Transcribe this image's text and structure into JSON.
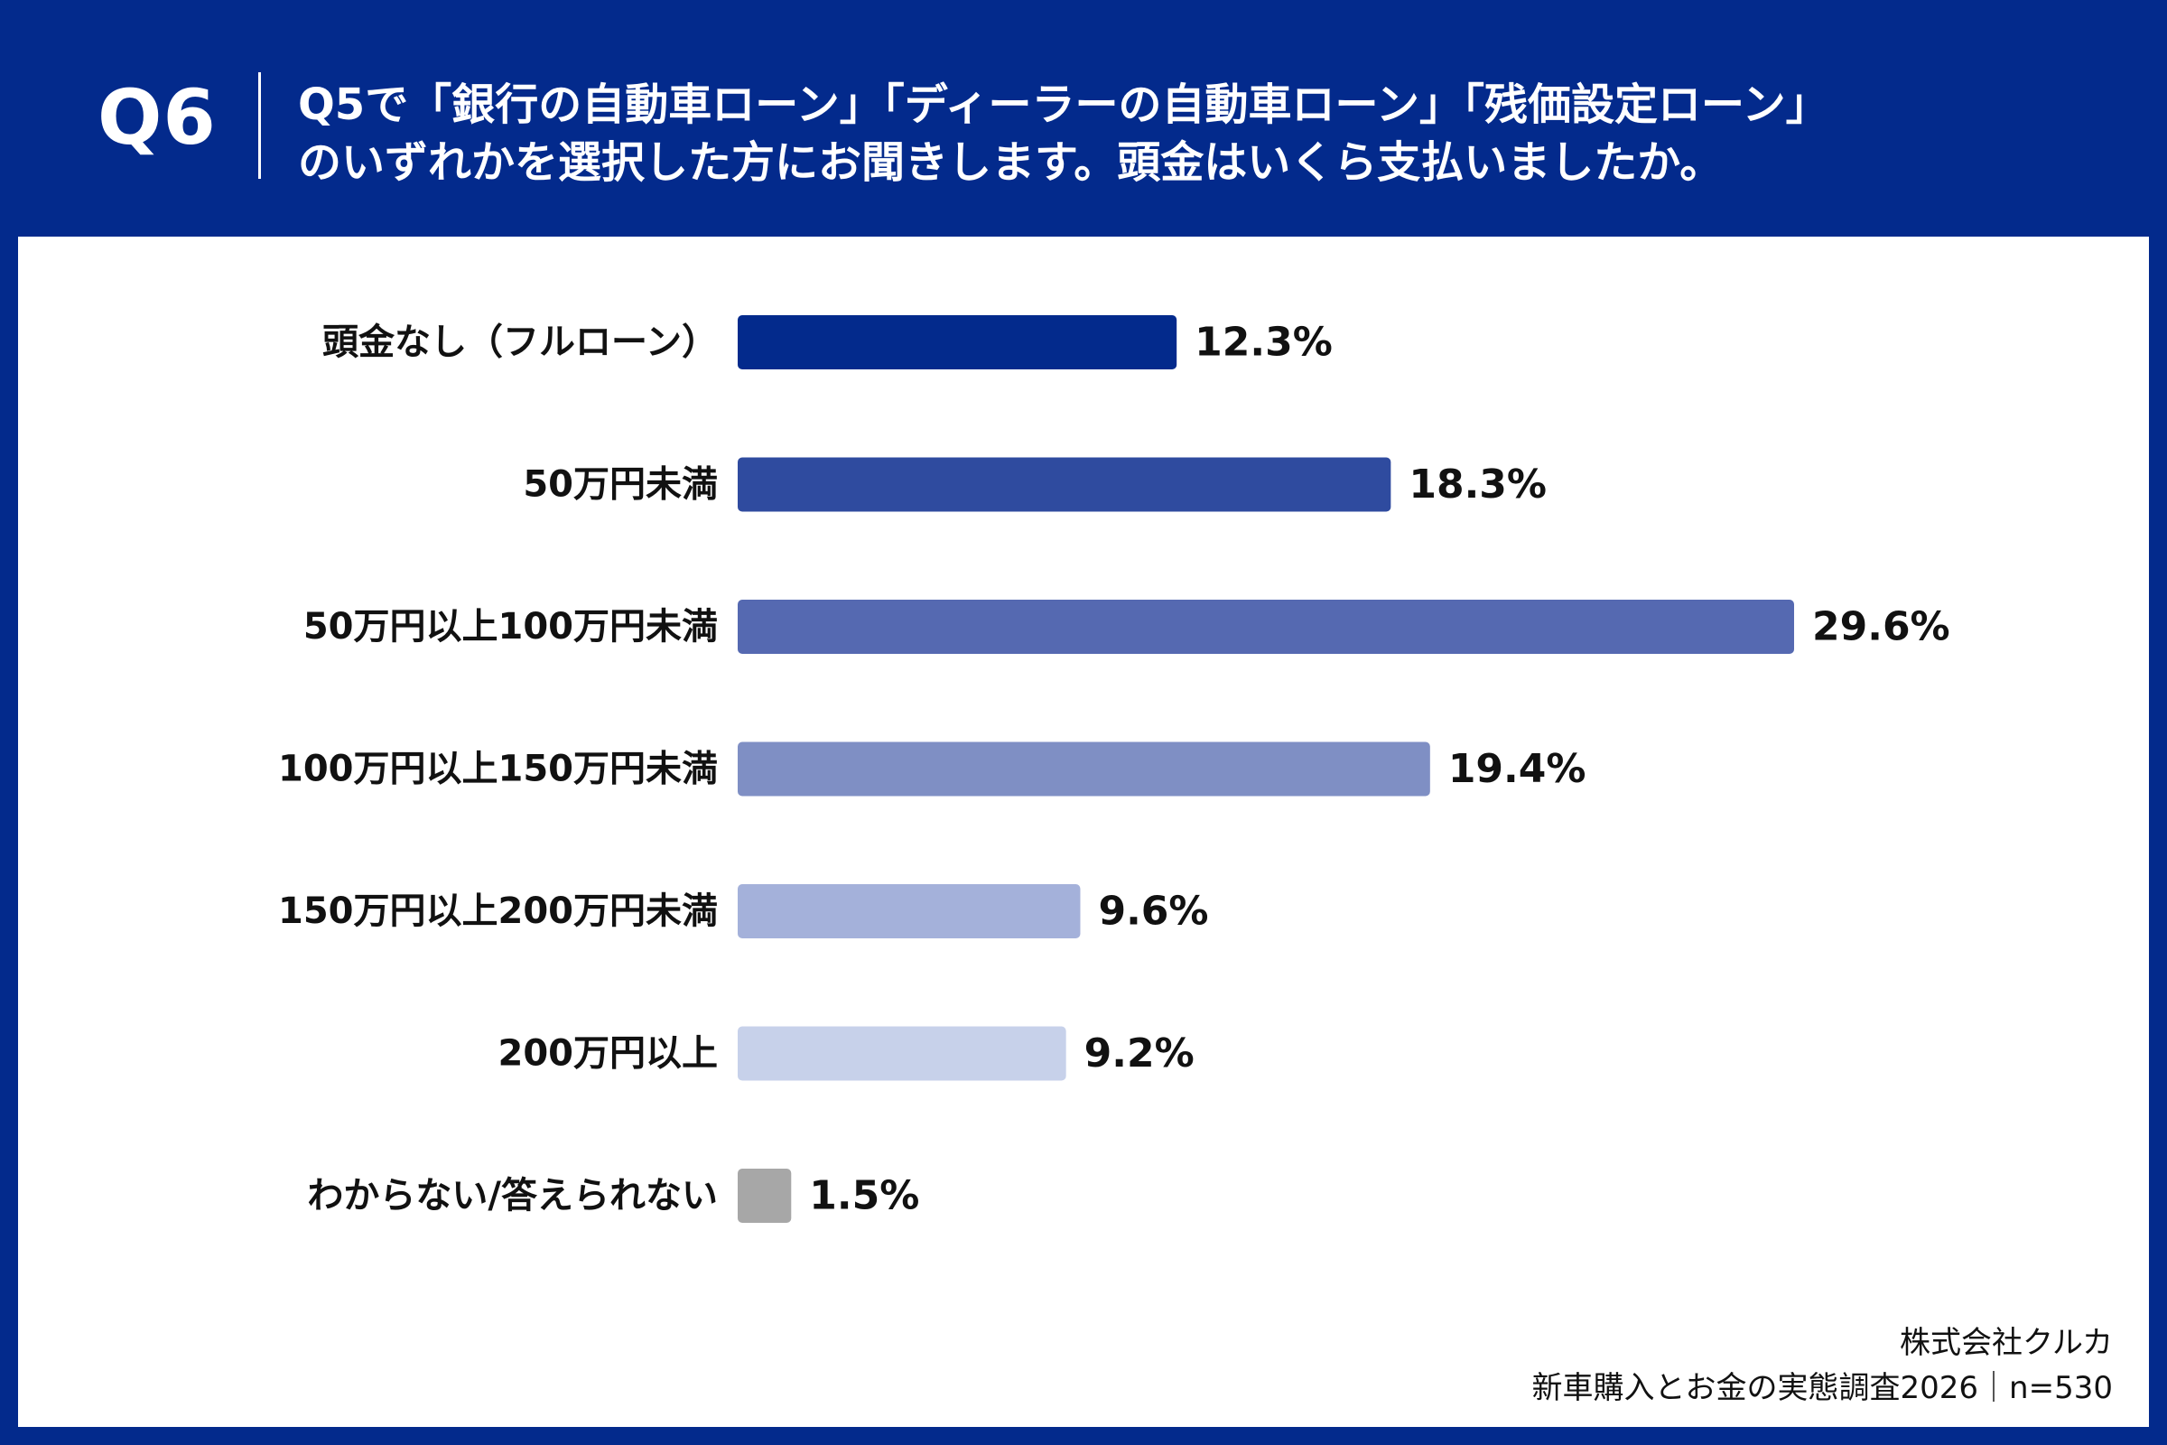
{
  "header": {
    "question_number": "Q6",
    "question_line1": "Q5で「銀行の自動車ローン」「ディーラーの自動車ローン」「残価設定ローン」",
    "question_line2": "のいずれかを選択した方にお聞きします。頭金はいくら支払いましたか。"
  },
  "footer": {
    "company": "株式会社クルカ",
    "survey": "新車購入とお金の実態調査2026｜n=530"
  },
  "colors": {
    "background": "#032a8c",
    "panel": "#ffffff"
  },
  "chart_data": {
    "type": "bar",
    "orientation": "horizontal",
    "categories": [
      "頭金なし（フルローン）",
      "50万円未満",
      "50万円以上100万円未満",
      "100万円以上150万円未満",
      "150万円以上200万円未満",
      "200万円以上",
      "わからない/答えられない"
    ],
    "values": [
      12.3,
      18.3,
      29.6,
      19.4,
      9.6,
      9.2,
      1.5
    ],
    "value_labels": [
      "12.3%",
      "18.3%",
      "29.6%",
      "19.4%",
      "9.6%",
      "9.2%",
      "1.5%"
    ],
    "colors": [
      "#032a8c",
      "#2f4b9f",
      "#5569b1",
      "#7f8fc4",
      "#a4b1da",
      "#c7d1ea",
      "#a7a7a7"
    ],
    "xlim": [
      0,
      29.6
    ],
    "grid": false,
    "legend": "none"
  }
}
